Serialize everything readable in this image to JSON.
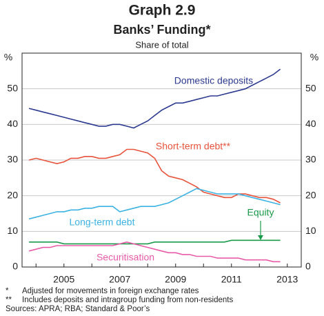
{
  "chart_data": {
    "type": "line",
    "title": "Graph 2.9",
    "subtitle": "Banks’ Funding*",
    "unit_note": "Share of total",
    "y_unit": "%",
    "x": [
      2003.75,
      2004,
      2004.25,
      2004.5,
      2004.75,
      2005,
      2005.25,
      2005.5,
      2005.75,
      2006,
      2006.25,
      2006.5,
      2006.75,
      2007,
      2007.25,
      2007.5,
      2007.75,
      2008,
      2008.25,
      2008.5,
      2008.75,
      2009,
      2009.25,
      2009.5,
      2009.75,
      2010,
      2010.25,
      2010.5,
      2010.75,
      2011,
      2011.25,
      2011.5,
      2011.75,
      2012,
      2012.25,
      2012.5,
      2012.75
    ],
    "series": [
      {
        "name": "Domestic deposits",
        "color": "#2b3990",
        "values": [
          44.5,
          44,
          43.5,
          43,
          42.5,
          42,
          41.5,
          41,
          40.5,
          40,
          39.5,
          39.5,
          40,
          40,
          39.5,
          39,
          40,
          41,
          42.5,
          44,
          45,
          46,
          46,
          46.5,
          47,
          47.5,
          48,
          48,
          48.5,
          49,
          49.5,
          50,
          51,
          52,
          53,
          54,
          55.5
        ]
      },
      {
        "name": "Short-term debt**",
        "color": "#e8523a",
        "values": [
          30,
          30.5,
          30,
          29.5,
          29,
          29.5,
          30.5,
          30.5,
          31,
          31,
          30.5,
          30.5,
          31,
          31.5,
          33,
          33,
          32.5,
          32,
          30.5,
          27,
          25.5,
          25,
          24.5,
          23.5,
          22.5,
          21,
          20.5,
          20,
          19.5,
          19.5,
          20.5,
          20.5,
          20,
          19.5,
          19.5,
          19,
          18
        ]
      },
      {
        "name": "Long-term debt",
        "color": "#3bb2e3",
        "values": [
          13.5,
          14,
          14.5,
          15,
          15.5,
          15.5,
          16,
          16,
          16.5,
          16.5,
          17,
          17,
          17,
          15.5,
          16,
          16.5,
          17,
          17,
          17,
          17.5,
          18,
          19,
          20,
          21,
          22,
          21.5,
          21,
          20.5,
          20.5,
          20.5,
          20.5,
          20,
          19.5,
          19,
          18.5,
          18,
          17.5
        ]
      },
      {
        "name": "Equity",
        "color": "#1a9a4a",
        "values": [
          7,
          7,
          7,
          7,
          7,
          6.5,
          6.5,
          6.5,
          6.5,
          6.5,
          6.5,
          6.5,
          6.5,
          6.5,
          6.5,
          6.5,
          6.5,
          6.5,
          7,
          7,
          7,
          7,
          7,
          7,
          7,
          7,
          7,
          7,
          7,
          7.5,
          7.5,
          7.5,
          7.5,
          7.5,
          7.5,
          7.5,
          7.5
        ]
      },
      {
        "name": "Securitisation",
        "color": "#e85aa8",
        "values": [
          4.5,
          5,
          5.5,
          5.5,
          6,
          6,
          6,
          6,
          6,
          6,
          6,
          6,
          6,
          6.5,
          7,
          6.5,
          6,
          5.5,
          5,
          4.5,
          4,
          4,
          3.5,
          3.5,
          3,
          3,
          3,
          2.5,
          2.5,
          2.5,
          2.5,
          2,
          2,
          2,
          2,
          1.5,
          1.5
        ]
      }
    ],
    "xlim": [
      2003.5,
      2013.5
    ],
    "xticks": [
      2005,
      2007,
      2009,
      2011,
      2013
    ],
    "x_minor_ticks": [
      2004,
      2005,
      2006,
      2007,
      2008,
      2009,
      2010,
      2011,
      2012,
      2013
    ],
    "ylim": [
      0,
      60
    ],
    "yticks": [
      0,
      10,
      20,
      30,
      40,
      50
    ],
    "grid": true,
    "footnotes": [
      {
        "marker": "*",
        "text": "Adjusted for movements in foreign exchange rates"
      },
      {
        "marker": "**",
        "text": "Includes deposits and intragroup funding from non-residents"
      }
    ],
    "sources": "Sources: APRA; RBA; Standard & Poor’s"
  }
}
